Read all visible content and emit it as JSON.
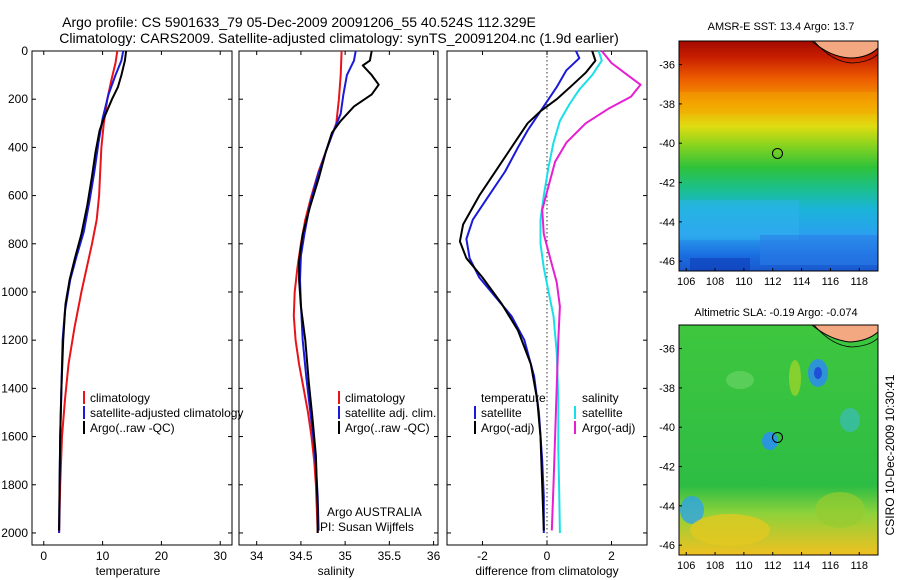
{
  "title": {
    "line1": "Argo profile: CS 5901633_79 05-Dec-2009 20091206_55 40.524S 112.329E",
    "line2": "Climatology: CARS2009. Satellite-adjusted climatology: synTS_20091204.nc (1.9d earlier)"
  },
  "colors": {
    "climatology": "#e8141a",
    "satellite": "#1a1ad8",
    "argo": "#000000",
    "sat_diff": "#19e0e8",
    "argo_adj": "#e61fd2"
  },
  "side_label": "CSIRO 10-Dec-2009 10:30:41",
  "chart_data": [
    {
      "type": "line",
      "id": "temperature",
      "xlabel": "temperature",
      "ylim": [
        2050,
        0
      ],
      "xlim": [
        -2,
        32
      ],
      "xticks": [
        0,
        10,
        20,
        30
      ],
      "yticks": [
        0,
        200,
        400,
        600,
        800,
        1000,
        1200,
        1400,
        1600,
        1800,
        2000
      ],
      "legend": [
        "climatology",
        "satellite-adjusted climatology",
        "Argo(..raw -QC)"
      ],
      "series": [
        {
          "key": "climatology",
          "color": "#e8141a",
          "points": [
            [
              12.5,
              0
            ],
            [
              12.2,
              50
            ],
            [
              11.5,
              120
            ],
            [
              10.8,
              200
            ],
            [
              10.2,
              300
            ],
            [
              9.8,
              400
            ],
            [
              9.6,
              500
            ],
            [
              9.4,
              600
            ],
            [
              9.0,
              700
            ],
            [
              8.2,
              800
            ],
            [
              7.3,
              900
            ],
            [
              6.4,
              1000
            ],
            [
              5.2,
              1150
            ],
            [
              4.2,
              1300
            ],
            [
              3.6,
              1450
            ],
            [
              3.1,
              1600
            ],
            [
              2.8,
              1800
            ],
            [
              2.6,
              2000
            ]
          ]
        },
        {
          "key": "satellite",
          "color": "#1a1ad8",
          "points": [
            [
              13.5,
              0
            ],
            [
              13.2,
              40
            ],
            [
              12.2,
              100
            ],
            [
              11.0,
              180
            ],
            [
              10.0,
              280
            ],
            [
              9.3,
              380
            ],
            [
              8.6,
              500
            ],
            [
              7.8,
              620
            ],
            [
              6.8,
              750
            ],
            [
              5.6,
              850
            ],
            [
              4.5,
              950
            ],
            [
              3.6,
              1080
            ],
            [
              3.2,
              1200
            ],
            [
              3.0,
              1400
            ],
            [
              2.8,
              1600
            ],
            [
              2.7,
              1800
            ],
            [
              2.6,
              2000
            ]
          ]
        },
        {
          "key": "argo",
          "color": "#000000",
          "points": [
            [
              14.0,
              0
            ],
            [
              13.8,
              40
            ],
            [
              13.2,
              100
            ],
            [
              12.6,
              150
            ],
            [
              11.6,
              200
            ],
            [
              10.2,
              280
            ],
            [
              9.5,
              330
            ],
            [
              8.8,
              420
            ],
            [
              8.2,
              520
            ],
            [
              7.4,
              640
            ],
            [
              6.4,
              760
            ],
            [
              5.3,
              860
            ],
            [
              4.4,
              950
            ],
            [
              3.7,
              1050
            ],
            [
              3.3,
              1200
            ],
            [
              3.0,
              1400
            ],
            [
              2.8,
              1600
            ],
            [
              2.7,
              1800
            ],
            [
              2.6,
              1990
            ]
          ]
        }
      ]
    },
    {
      "type": "line",
      "id": "salinity",
      "xlabel": "salinity",
      "ylim": [
        2050,
        0
      ],
      "xlim": [
        33.8,
        36.05
      ],
      "xticks": [
        34,
        34.5,
        35,
        35.5,
        36
      ],
      "legend": [
        "climatology",
        "satellite adj. clim.",
        "Argo(..raw -QC)"
      ],
      "annotations": [
        "Argo AUSTRALIA",
        "PI: Susan Wijffels"
      ],
      "series": [
        {
          "key": "climatology",
          "color": "#e8141a",
          "points": [
            [
              34.96,
              0
            ],
            [
              34.95,
              100
            ],
            [
              34.93,
              200
            ],
            [
              34.9,
              300
            ],
            [
              34.8,
              400
            ],
            [
              34.7,
              500
            ],
            [
              34.62,
              600
            ],
            [
              34.55,
              700
            ],
            [
              34.5,
              800
            ],
            [
              34.46,
              900
            ],
            [
              34.43,
              1000
            ],
            [
              34.42,
              1100
            ],
            [
              34.44,
              1200
            ],
            [
              34.48,
              1300
            ],
            [
              34.53,
              1400
            ],
            [
              34.58,
              1500
            ],
            [
              34.62,
              1600
            ],
            [
              34.65,
              1700
            ],
            [
              34.67,
              1800
            ],
            [
              34.68,
              1900
            ],
            [
              34.69,
              2000
            ]
          ]
        },
        {
          "key": "satellite",
          "color": "#1a1ad8",
          "points": [
            [
              35.12,
              0
            ],
            [
              35.1,
              40
            ],
            [
              35.02,
              100
            ],
            [
              34.98,
              180
            ],
            [
              34.95,
              260
            ],
            [
              34.85,
              350
            ],
            [
              34.78,
              420
            ],
            [
              34.68,
              530
            ],
            [
              34.6,
              640
            ],
            [
              34.54,
              760
            ],
            [
              34.5,
              850
            ],
            [
              34.49,
              950
            ],
            [
              34.5,
              1050
            ],
            [
              34.52,
              1200
            ],
            [
              34.56,
              1350
            ],
            [
              34.6,
              1480
            ],
            [
              34.64,
              1600
            ],
            [
              34.67,
              1720
            ],
            [
              34.69,
              1850
            ],
            [
              34.7,
              1990
            ]
          ]
        },
        {
          "key": "argo",
          "color": "#000000",
          "points": [
            [
              35.3,
              0
            ],
            [
              35.28,
              40
            ],
            [
              35.2,
              60
            ],
            [
              35.3,
              100
            ],
            [
              35.38,
              140
            ],
            [
              35.3,
              180
            ],
            [
              35.1,
              230
            ],
            [
              34.95,
              290
            ],
            [
              34.85,
              340
            ],
            [
              34.78,
              420
            ],
            [
              34.7,
              530
            ],
            [
              34.6,
              650
            ],
            [
              34.52,
              760
            ],
            [
              34.48,
              870
            ],
            [
              34.48,
              950
            ],
            [
              34.5,
              1060
            ],
            [
              34.55,
              1200
            ],
            [
              34.59,
              1380
            ],
            [
              34.63,
              1520
            ],
            [
              34.67,
              1680
            ],
            [
              34.68,
              1800
            ],
            [
              34.69,
              1900
            ],
            [
              34.69,
              2000
            ]
          ]
        }
      ]
    },
    {
      "type": "line",
      "id": "difference",
      "xlabel": "difference from climatology",
      "ylim": [
        2050,
        0
      ],
      "xlim": [
        -3.1,
        3.1
      ],
      "xticks": [
        -2,
        0,
        2
      ],
      "legend_temperature": {
        "header": "temperature",
        "items": [
          "satellite",
          "Argo(-adj)"
        ]
      },
      "legend_salinity": {
        "header": "salinity",
        "items": [
          "satellite",
          "Argo(-adj)"
        ]
      },
      "series": [
        {
          "key": "temp_satellite",
          "color": "#1a1ad8",
          "points": [
            [
              0.9,
              0
            ],
            [
              1.0,
              30
            ],
            [
              0.6,
              80
            ],
            [
              0.3,
              150
            ],
            [
              -0.2,
              250
            ],
            [
              -0.6,
              330
            ],
            [
              -0.9,
              400
            ],
            [
              -1.3,
              500
            ],
            [
              -1.8,
              600
            ],
            [
              -2.3,
              700
            ],
            [
              -2.5,
              780
            ],
            [
              -2.4,
              860
            ],
            [
              -2.1,
              940
            ],
            [
              -1.6,
              1020
            ],
            [
              -1.1,
              1100
            ],
            [
              -0.7,
              1200
            ],
            [
              -0.4,
              1350
            ],
            [
              -0.25,
              1500
            ],
            [
              -0.15,
              1700
            ],
            [
              -0.1,
              1850
            ],
            [
              -0.1,
              2000
            ]
          ]
        },
        {
          "key": "temp_argo",
          "color": "#000000",
          "points": [
            [
              1.4,
              0
            ],
            [
              1.5,
              40
            ],
            [
              1.2,
              90
            ],
            [
              0.8,
              140
            ],
            [
              0.3,
              200
            ],
            [
              -0.2,
              250
            ],
            [
              -0.6,
              300
            ],
            [
              -1.0,
              380
            ],
            [
              -1.5,
              480
            ],
            [
              -2.1,
              600
            ],
            [
              -2.6,
              720
            ],
            [
              -2.7,
              790
            ],
            [
              -2.5,
              860
            ],
            [
              -2.0,
              940
            ],
            [
              -1.4,
              1050
            ],
            [
              -0.9,
              1160
            ],
            [
              -0.5,
              1300
            ],
            [
              -0.3,
              1450
            ],
            [
              -0.2,
              1600
            ],
            [
              -0.15,
              1800
            ],
            [
              -0.1,
              1990
            ]
          ]
        },
        {
          "key": "sal_satellite",
          "color": "#19e0e8",
          "points": [
            [
              1.6,
              0
            ],
            [
              1.7,
              40
            ],
            [
              1.4,
              100
            ],
            [
              1.0,
              160
            ],
            [
              0.7,
              220
            ],
            [
              0.4,
              290
            ],
            [
              0.2,
              380
            ],
            [
              0.05,
              480
            ],
            [
              -0.1,
              600
            ],
            [
              -0.2,
              700
            ],
            [
              -0.2,
              800
            ],
            [
              -0.1,
              900
            ],
            [
              0.05,
              1000
            ],
            [
              0.2,
              1100
            ],
            [
              0.3,
              1250
            ],
            [
              0.35,
              1450
            ],
            [
              0.35,
              1650
            ],
            [
              0.38,
              1850
            ],
            [
              0.4,
              2000
            ]
          ]
        },
        {
          "key": "sal_argo",
          "color": "#e61fd2",
          "points": [
            [
              1.7,
              0
            ],
            [
              2.0,
              50
            ],
            [
              2.4,
              90
            ],
            [
              2.9,
              140
            ],
            [
              2.6,
              190
            ],
            [
              1.9,
              240
            ],
            [
              1.2,
              300
            ],
            [
              0.6,
              380
            ],
            [
              0.25,
              460
            ],
            [
              0.05,
              560
            ],
            [
              -0.15,
              660
            ],
            [
              -0.1,
              760
            ],
            [
              0.1,
              860
            ],
            [
              0.3,
              960
            ],
            [
              0.4,
              1060
            ],
            [
              0.35,
              1200
            ],
            [
              0.3,
              1400
            ],
            [
              0.25,
              1600
            ],
            [
              0.2,
              1800
            ],
            [
              0.15,
              1990
            ]
          ]
        }
      ]
    },
    {
      "type": "heatmap",
      "id": "sst_map",
      "title": "AMSR-E SST: 13.4 Argo: 13.7",
      "xlim": [
        105.5,
        119.3
      ],
      "ylim": [
        -46.5,
        -34.8
      ],
      "xticks": [
        106,
        108,
        110,
        112,
        114,
        116,
        118
      ],
      "yticks": [
        -36,
        -38,
        -40,
        -42,
        -44,
        -46
      ],
      "marker": [
        112.33,
        -40.52
      ]
    },
    {
      "type": "heatmap",
      "id": "sla_map",
      "title": "Altimetric SLA: -0.19 Argo: -0.074",
      "xlim": [
        105.5,
        119.3
      ],
      "ylim": [
        -46.5,
        -34.8
      ],
      "xticks": [
        106,
        108,
        110,
        112,
        114,
        116,
        118
      ],
      "yticks": [
        -36,
        -38,
        -40,
        -42,
        -44,
        -46
      ],
      "marker": [
        112.33,
        -40.52
      ]
    }
  ]
}
